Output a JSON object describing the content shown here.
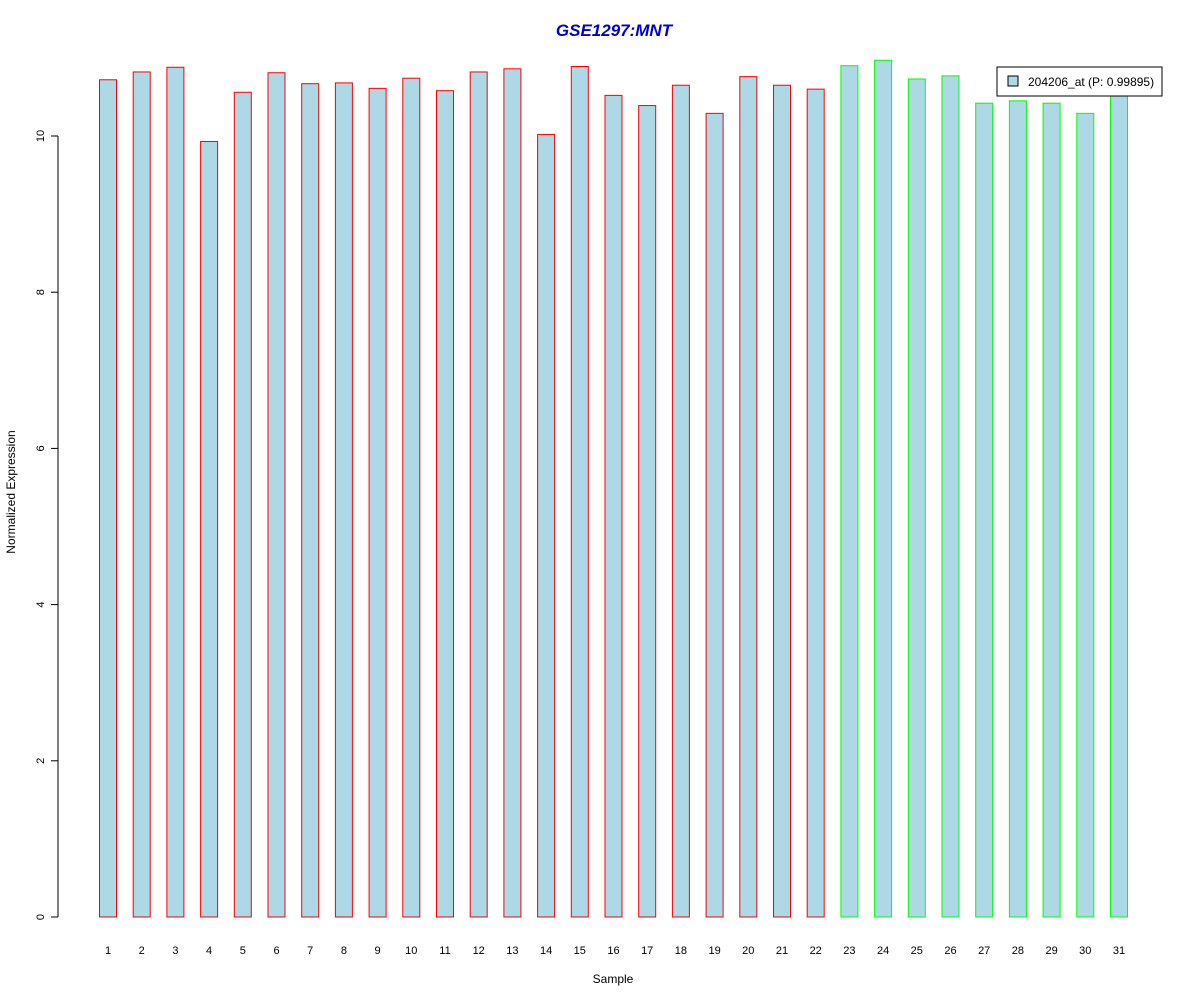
{
  "chart_data": {
    "type": "bar",
    "title": "GSE1297:MNT",
    "title_color": "#0000cc",
    "xlabel": "Sample",
    "ylabel": "Normalized Expression",
    "ylim": [
      0,
      11
    ],
    "yticks": [
      0,
      2,
      4,
      6,
      8,
      10
    ],
    "categories": [
      "1",
      "2",
      "3",
      "4",
      "5",
      "6",
      "7",
      "8",
      "9",
      "10",
      "11",
      "12",
      "13",
      "14",
      "15",
      "16",
      "17",
      "18",
      "19",
      "20",
      "21",
      "22",
      "23",
      "24",
      "25",
      "26",
      "27",
      "28",
      "29",
      "30",
      "31"
    ],
    "values": [
      10.72,
      10.82,
      10.88,
      9.93,
      10.56,
      10.81,
      10.67,
      10.68,
      10.61,
      10.74,
      10.58,
      10.82,
      10.86,
      10.02,
      10.89,
      10.52,
      10.39,
      10.65,
      10.29,
      10.76,
      10.65,
      10.6,
      10.9,
      10.97,
      10.73,
      10.77,
      10.42,
      10.45,
      10.42,
      10.29,
      10.55
    ],
    "fill_color": "#add8e6",
    "groups": [
      {
        "from": 1,
        "to": 22,
        "border_color": "#ff0000"
      },
      {
        "from": 23,
        "to": 31,
        "border_color": "#00ff00"
      }
    ],
    "grid": false,
    "legend": {
      "placement": "top-right",
      "entries": [
        {
          "label": "204206_at (P: 0.99895)",
          "color": "#add8e6"
        }
      ]
    }
  }
}
